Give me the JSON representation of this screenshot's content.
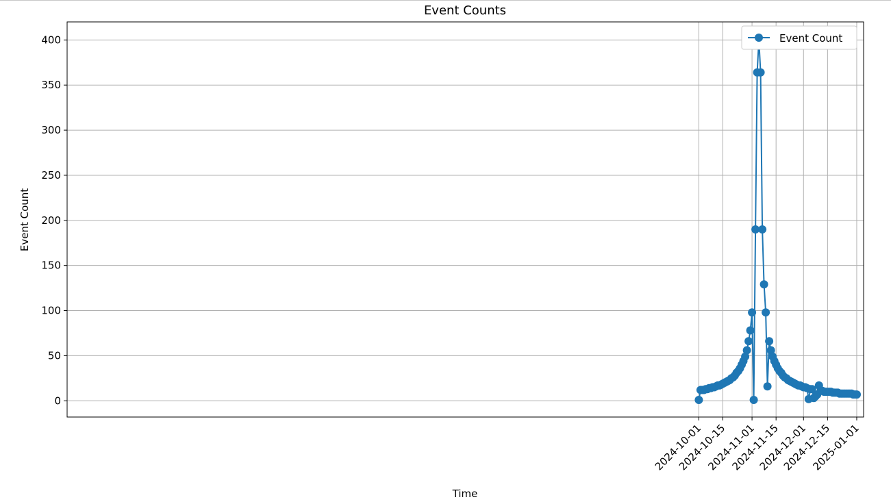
{
  "chart_data": {
    "type": "line",
    "title": "Event Counts",
    "xlabel": "Time",
    "ylabel": "Event Count",
    "x_start": "2024-10-01",
    "x_end": "2025-01-01",
    "xlim": [
      "2023-09-29",
      "2025-01-05"
    ],
    "ylim": [
      -18,
      420
    ],
    "y_ticks": [
      0,
      50,
      100,
      150,
      200,
      250,
      300,
      350,
      400
    ],
    "x_ticks": [
      "2024-10-01",
      "2024-10-15",
      "2024-11-01",
      "2024-11-15",
      "2024-12-01",
      "2024-12-15",
      "2025-01-01"
    ],
    "grid": true,
    "legend_position": "top-right",
    "series": [
      {
        "name": "Event Count",
        "color": "#1f77b4",
        "marker": "circle",
        "values": [
          1,
          12,
          12,
          12,
          13,
          13,
          14,
          14,
          15,
          15,
          16,
          17,
          17,
          18,
          19,
          20,
          21,
          22,
          23,
          25,
          26,
          28,
          31,
          33,
          36,
          40,
          44,
          49,
          56,
          66,
          78,
          98,
          1,
          190,
          364,
          400,
          364,
          190,
          129,
          98,
          16,
          66,
          56,
          49,
          44,
          40,
          36,
          33,
          31,
          28,
          26,
          25,
          23,
          22,
          21,
          20,
          19,
          18,
          17,
          17,
          16,
          15,
          15,
          14,
          2,
          13,
          13,
          3,
          5,
          7,
          17,
          11,
          11,
          10,
          10,
          10,
          10,
          10,
          9,
          9,
          9,
          9,
          8,
          8,
          8,
          8,
          8,
          8,
          8,
          8,
          7,
          7,
          7
        ]
      }
    ]
  }
}
